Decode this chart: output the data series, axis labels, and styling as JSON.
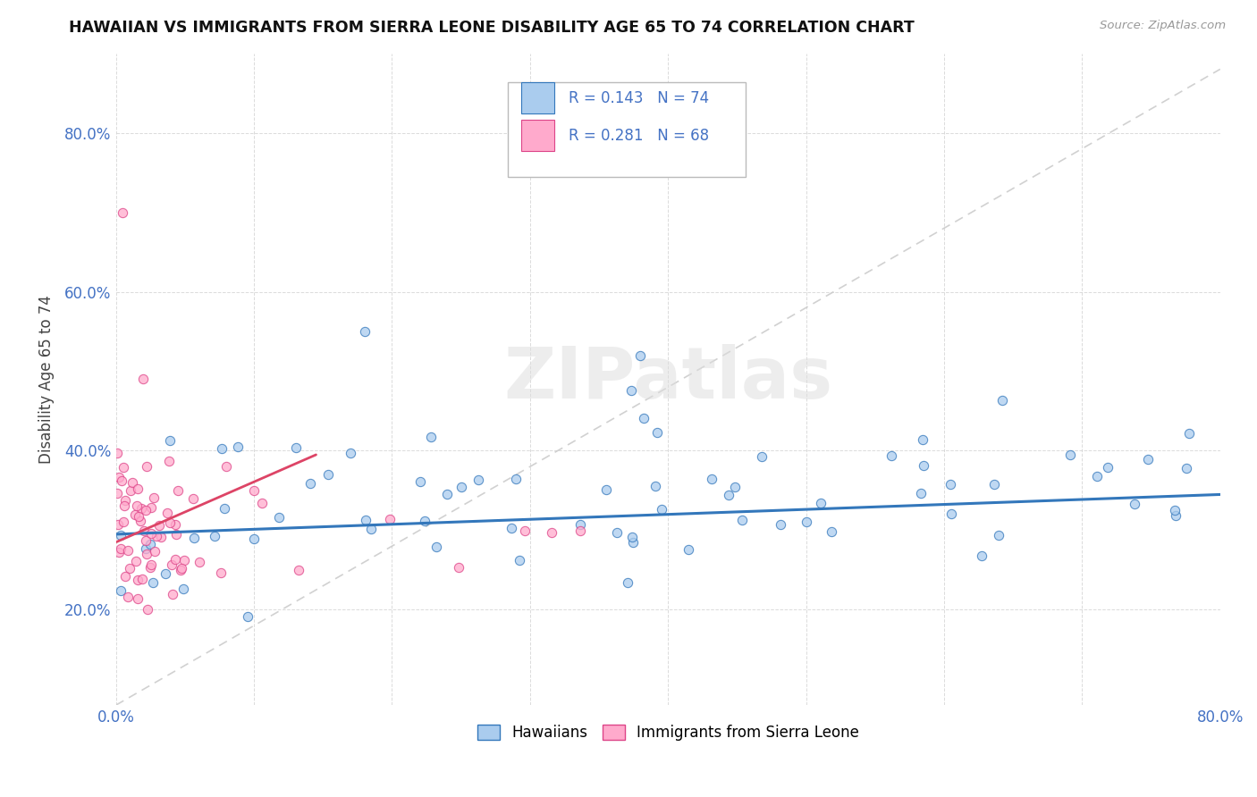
{
  "title": "HAWAIIAN VS IMMIGRANTS FROM SIERRA LEONE DISABILITY AGE 65 TO 74 CORRELATION CHART",
  "source": "Source: ZipAtlas.com",
  "ylabel": "Disability Age 65 to 74",
  "xlim": [
    0.0,
    0.8
  ],
  "ylim": [
    0.08,
    0.9
  ],
  "xticks": [
    0.0,
    0.1,
    0.2,
    0.3,
    0.4,
    0.5,
    0.6,
    0.7,
    0.8
  ],
  "yticks": [
    0.2,
    0.4,
    0.6,
    0.8
  ],
  "color_hawaiian": "#aaccee",
  "color_sierra": "#ffaacc",
  "color_line_hawaiian": "#3377bb",
  "color_line_sierra": "#dd4466",
  "color_ref_line": "#cccccc",
  "background": "#ffffff",
  "watermark": "ZIPatlas",
  "tick_color": "#4472c4",
  "hawaiian_trend_x": [
    0.0,
    0.8
  ],
  "hawaiian_trend_y": [
    0.295,
    0.345
  ],
  "sierra_trend_x": [
    0.0,
    0.145
  ],
  "sierra_trend_y": [
    0.285,
    0.395
  ],
  "ref_line_x": [
    0.0,
    0.8
  ],
  "ref_line_y": [
    0.08,
    0.88
  ]
}
